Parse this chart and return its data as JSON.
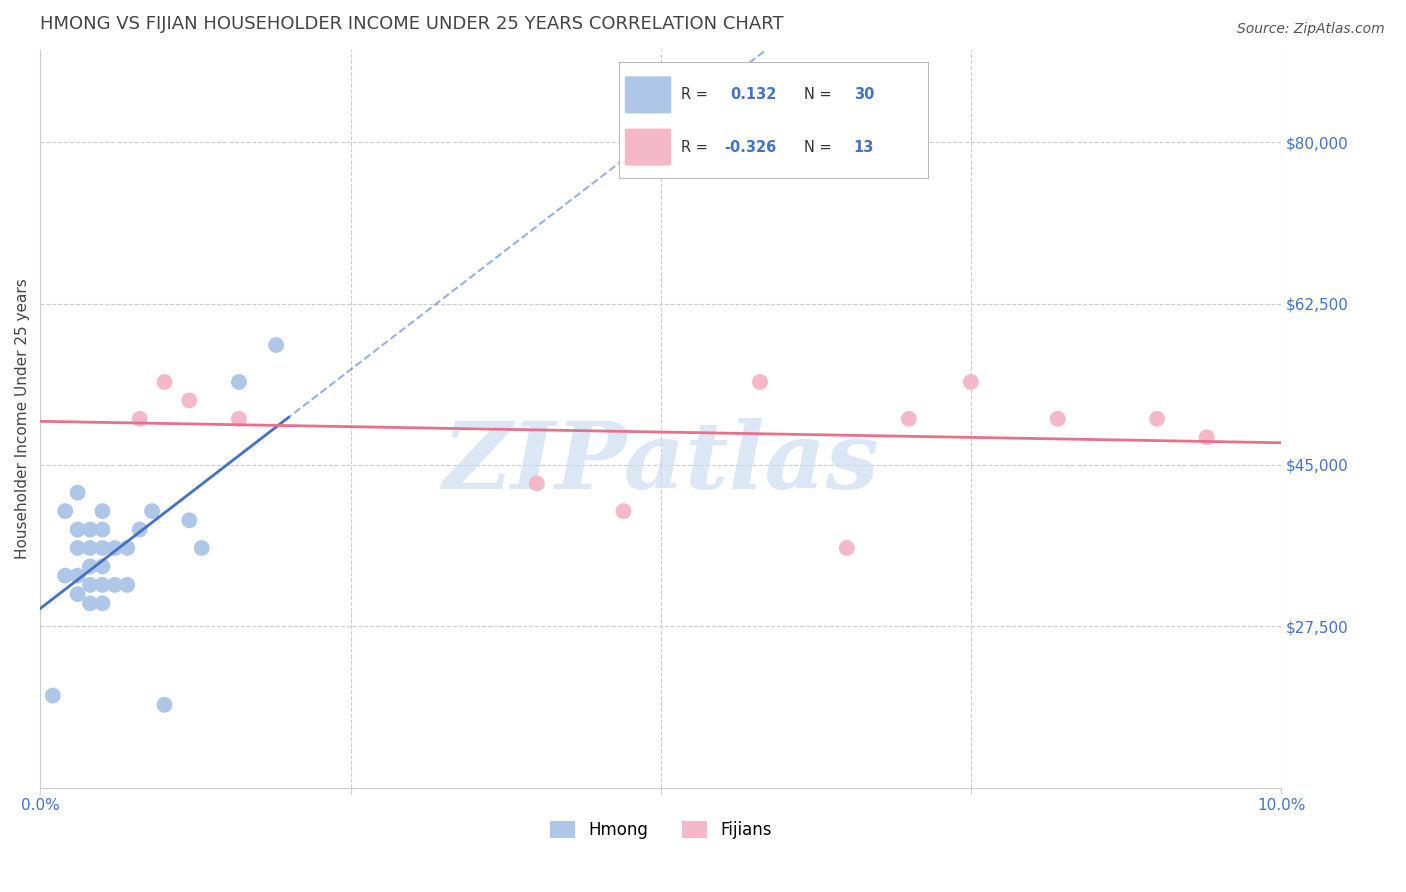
{
  "title": "HMONG VS FIJIAN HOUSEHOLDER INCOME UNDER 25 YEARS CORRELATION CHART",
  "source": "Source: ZipAtlas.com",
  "ylabel": "Householder Income Under 25 years",
  "xlim": [
    0.0,
    0.1
  ],
  "ylim": [
    10000,
    90000
  ],
  "yticks": [
    27500,
    45000,
    62500,
    80000
  ],
  "ytick_labels": [
    "$27,500",
    "$45,000",
    "$62,500",
    "$80,000"
  ],
  "xticks": [
    0.0,
    0.025,
    0.05,
    0.075,
    0.1
  ],
  "xtick_labels": [
    "0.0%",
    "",
    "",
    "",
    "10.0%"
  ],
  "hmong_R": 0.132,
  "hmong_N": 30,
  "fijian_R": -0.326,
  "fijian_N": 13,
  "hmong_color": "#aec6e8",
  "fijian_color": "#f4b8c8",
  "hmong_line_color": "#4472c4",
  "fijian_line_color": "#e8708a",
  "background_color": "#ffffff",
  "grid_color": "#cccccc",
  "watermark": "ZIPatlas",
  "watermark_color": "#ccddf0",
  "hmong_x": [
    0.001,
    0.002,
    0.002,
    0.003,
    0.003,
    0.003,
    0.003,
    0.003,
    0.004,
    0.004,
    0.004,
    0.004,
    0.004,
    0.005,
    0.005,
    0.005,
    0.005,
    0.005,
    0.005,
    0.006,
    0.006,
    0.007,
    0.007,
    0.008,
    0.009,
    0.01,
    0.012,
    0.013,
    0.016,
    0.019
  ],
  "hmong_y": [
    20000,
    33000,
    40000,
    31000,
    33000,
    36000,
    38000,
    42000,
    30000,
    32000,
    34000,
    36000,
    38000,
    30000,
    32000,
    34000,
    36000,
    38000,
    40000,
    32000,
    36000,
    32000,
    36000,
    38000,
    40000,
    19000,
    39000,
    36000,
    54000,
    58000
  ],
  "fijian_x": [
    0.008,
    0.01,
    0.012,
    0.016,
    0.04,
    0.047,
    0.058,
    0.065,
    0.07,
    0.075,
    0.082,
    0.09,
    0.094
  ],
  "fijian_y": [
    50000,
    54000,
    52000,
    50000,
    43000,
    40000,
    54000,
    36000,
    50000,
    54000,
    50000,
    50000,
    48000
  ],
  "title_fontsize": 13,
  "label_fontsize": 11,
  "tick_fontsize": 11,
  "legend_fontsize": 12,
  "axis_label_color": "#444444",
  "blue_tick_color": "#4472c4",
  "axis_color": "#cccccc",
  "legend_box_color": "#f0f0f0",
  "source_color": "#555555"
}
